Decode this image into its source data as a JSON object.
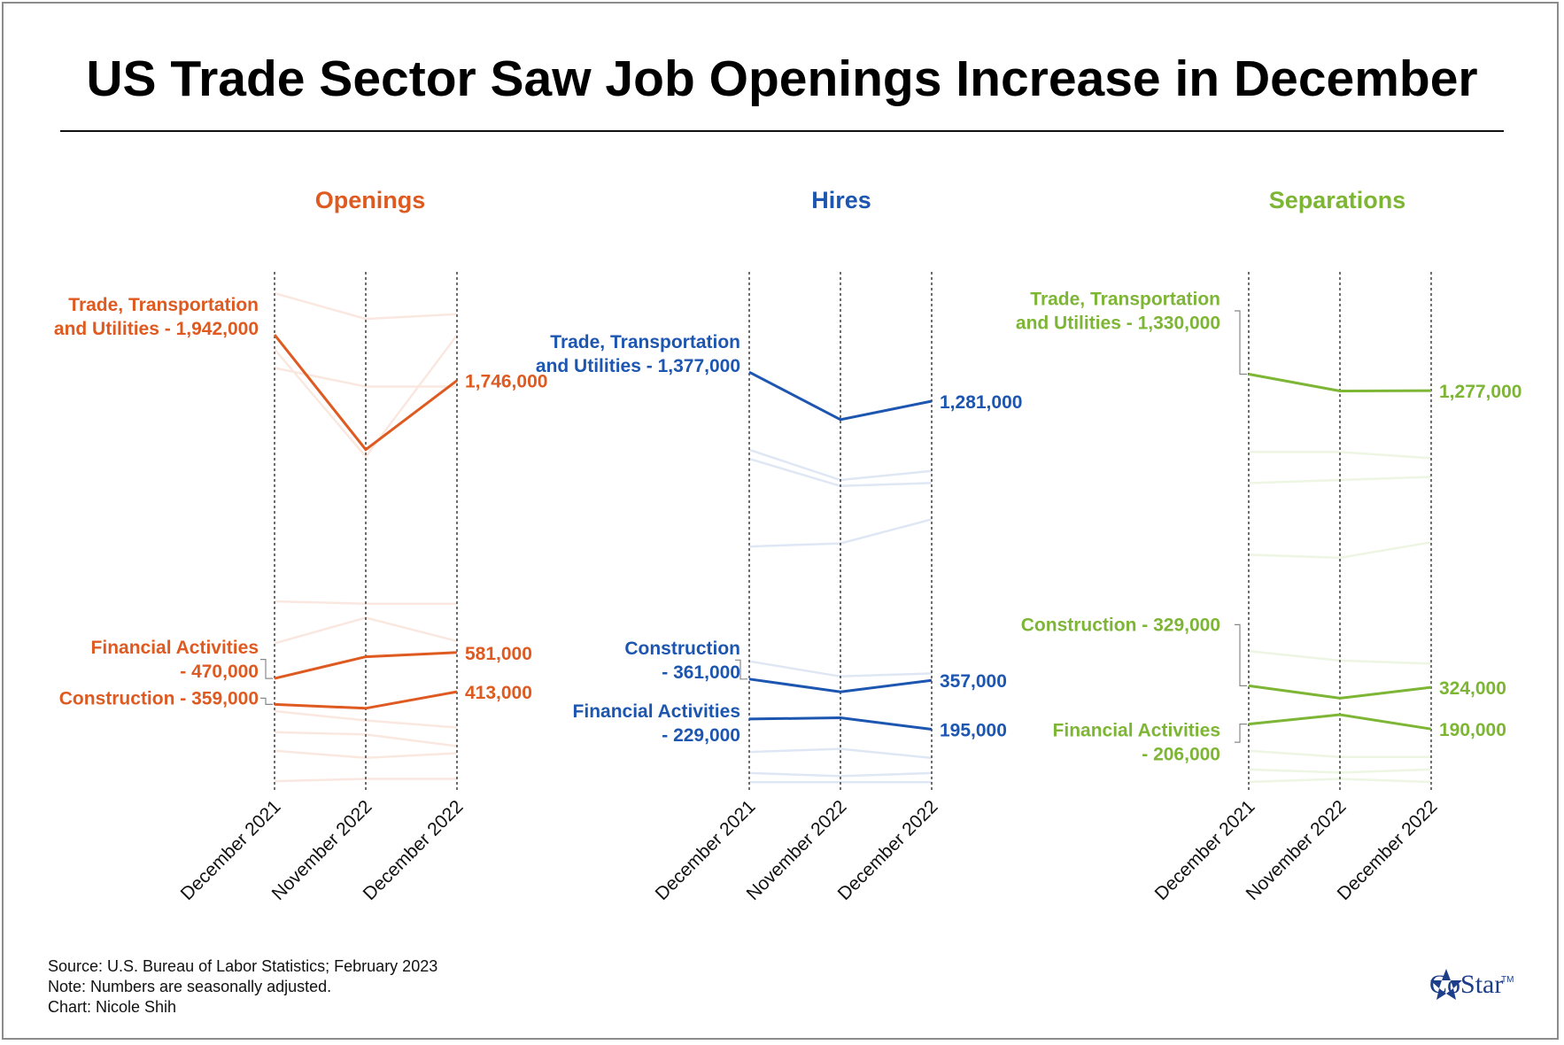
{
  "title": "US Trade Sector Saw Job Openings Increase in December",
  "footer": {
    "source": "Source: U.S. Bureau of Labor Statistics; February 2023",
    "note": "Note: Numbers are seasonally adjusted.",
    "credit": "Chart: Nicole Shih"
  },
  "logo": {
    "text": "CoStar",
    "tm": "TM",
    "color": "#1d3f8a"
  },
  "chart_data": [
    {
      "type": "line",
      "title": "Openings",
      "color": "#de5a20",
      "x": [
        "December 2021",
        "November 2022",
        "December 2022"
      ],
      "highlighted": [
        {
          "name": "Trade, Transportation and Utilities",
          "label_lines": [
            "Trade, Transportation",
            "and Utilities - 1,942,000"
          ],
          "end_label": "1,746,000",
          "values": [
            1942000,
            1450000,
            1746000
          ]
        },
        {
          "name": "Financial Activities",
          "label_lines": [
            "Financial Activities",
            "- 470,000"
          ],
          "end_label": "581,000",
          "values": [
            470000,
            563000,
            581000
          ]
        },
        {
          "name": "Construction",
          "label_lines": [
            "Construction - 359,000"
          ],
          "end_label": "413,000",
          "values": [
            359000,
            342000,
            413000
          ]
        }
      ],
      "background_series": [
        [
          2120000,
          2010000,
          2030000
        ],
        [
          1800000,
          1720000,
          1720000
        ],
        [
          1880000,
          1420000,
          1940000
        ],
        [
          800000,
          790000,
          790000
        ],
        [
          620000,
          730000,
          630000
        ],
        [
          330000,
          290000,
          260000
        ],
        [
          240000,
          230000,
          180000
        ],
        [
          160000,
          130000,
          150000
        ],
        [
          30000,
          40000,
          40000
        ]
      ],
      "ylim": [
        0,
        2200000
      ]
    },
    {
      "type": "line",
      "title": "Hires",
      "color": "#1d56b0",
      "x": [
        "December 2021",
        "November 2022",
        "December 2022"
      ],
      "highlighted": [
        {
          "name": "Trade, Transportation and Utilities",
          "label_lines": [
            "Trade, Transportation",
            "and Utilities - 1,377,000"
          ],
          "end_label": "1,281,000",
          "values": [
            1377000,
            1220000,
            1281000
          ]
        },
        {
          "name": "Construction",
          "label_lines": [
            "Construction",
            "- 361,000"
          ],
          "end_label": "357,000",
          "values": [
            361000,
            319000,
            357000
          ]
        },
        {
          "name": "Financial Activities",
          "label_lines": [
            "Financial Activities",
            "- 229,000"
          ],
          "end_label": "195,000",
          "values": [
            229000,
            233000,
            195000
          ]
        }
      ],
      "background_series": [
        [
          1120000,
          1020000,
          1050000
        ],
        [
          1090000,
          1000000,
          1010000
        ],
        [
          800000,
          810000,
          890000
        ],
        [
          420000,
          370000,
          380000
        ],
        [
          120000,
          130000,
          100000
        ],
        [
          50000,
          40000,
          50000
        ],
        [
          20000,
          20000,
          20000
        ]
      ],
      "ylim": [
        0,
        1700000
      ]
    },
    {
      "type": "line",
      "title": "Separations",
      "color": "#7db534",
      "x": [
        "December 2021",
        "November 2022",
        "December 2022"
      ],
      "highlighted": [
        {
          "name": "Trade, Transportation and Utilities",
          "label_lines": [
            "Trade, Transportation",
            "and Utilities - 1,330,000"
          ],
          "end_label": "1,277,000",
          "values": [
            1330000,
            1276000,
            1277000
          ]
        },
        {
          "name": "Construction",
          "label_lines": [
            "Construction - 329,000"
          ],
          "end_label": "324,000",
          "values": [
            329000,
            289000,
            324000
          ]
        },
        {
          "name": "Financial Activities",
          "label_lines": [
            "Financial Activities",
            "- 206,000"
          ],
          "end_label": "190,000",
          "values": [
            206000,
            236000,
            190000
          ]
        }
      ],
      "background_series": [
        [
          1080000,
          1080000,
          1060000
        ],
        [
          980000,
          990000,
          1000000
        ],
        [
          750000,
          740000,
          790000
        ],
        [
          440000,
          410000,
          400000
        ],
        [
          120000,
          100000,
          100000
        ],
        [
          60000,
          50000,
          60000
        ],
        [
          20000,
          30000,
          20000
        ]
      ],
      "ylim": [
        0,
        1650000
      ]
    }
  ]
}
